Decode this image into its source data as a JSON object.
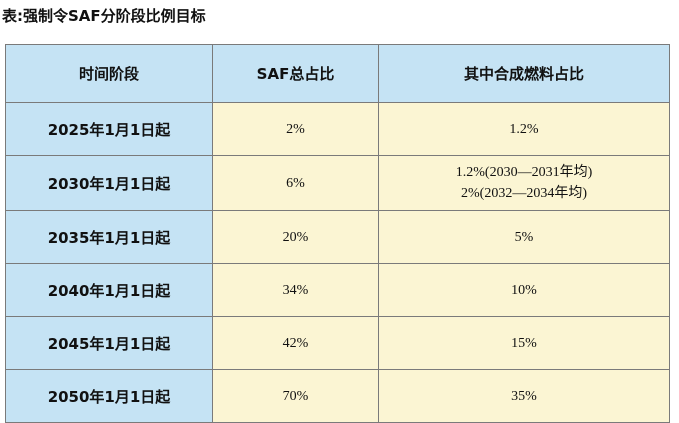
{
  "caption": "表:强制令SAF分阶段比例目标",
  "table": {
    "headers": [
      "时间阶段",
      "SAF总占比",
      "其中合成燃料占比"
    ],
    "rows": [
      {
        "period": "2025年1月1日起",
        "saf_total": "2%",
        "synthetic_lines": [
          "1.2%"
        ]
      },
      {
        "period": "2030年1月1日起",
        "saf_total": "6%",
        "synthetic_lines": [
          "1.2%(2030—2031年均)",
          "2%(2032—2034年均)"
        ]
      },
      {
        "period": "2035年1月1日起",
        "saf_total": "20%",
        "synthetic_lines": [
          "5%"
        ]
      },
      {
        "period": "2040年1月1日起",
        "saf_total": "34%",
        "synthetic_lines": [
          "10%"
        ]
      },
      {
        "period": "2045年1月1日起",
        "saf_total": "42%",
        "synthetic_lines": [
          "15%"
        ]
      },
      {
        "period": "2050年1月1日起",
        "saf_total": "70%",
        "synthetic_lines": [
          "35%"
        ]
      }
    ]
  },
  "colors": {
    "header_bg": "#c5e3f4",
    "value_bg": "#fbf5d3",
    "border": "#7a7a7a"
  }
}
